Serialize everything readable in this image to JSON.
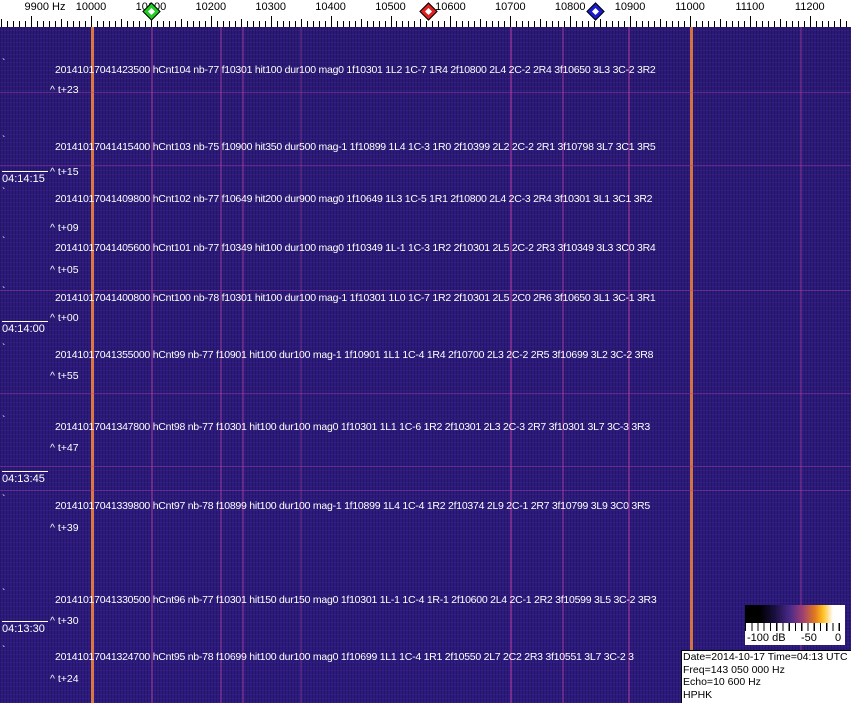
{
  "axis": {
    "unit_label": "9900 Hz",
    "labels": [
      "10000",
      "10100",
      "10200",
      "10300",
      "10400",
      "10500",
      "10600",
      "10700",
      "10800",
      "10900",
      "11000",
      "11100",
      "11200"
    ],
    "range_hz": [
      9850,
      11280
    ],
    "markers": [
      {
        "name": "green",
        "freq_hz": 10100,
        "color": "#22cc22"
      },
      {
        "name": "red",
        "freq_hz": 10563,
        "color": "#dd2222"
      },
      {
        "name": "blue",
        "freq_hz": 10841,
        "color": "#1a1acc"
      }
    ]
  },
  "spectrogram": {
    "background_color": "#2b1b7e",
    "signal_color": "#e8843a",
    "time_labels": [
      "04:14:15",
      "04:14:00",
      "04:13:45",
      "04:13:30"
    ],
    "rows": [
      {
        "text": "20141017041423500 hCnt104 nb-77 f10301 hit100 dur100 mag0 1f10301 1L2 1C-7 1R4 2f10800 2L4 2C-2 2R4 3f10650 3L3 3C-2 3R2",
        "t": "^ t+23"
      },
      {
        "text": "20141017041415400 hCnt103 nb-75 f10900 hit350 dur500 mag-1 1f10899 1L4 1C-3 1R0 2f10399 2L2 2C-2 2R1 3f10798 3L7 3C1 3R5",
        "t": "^ t+15"
      },
      {
        "text": "20141017041409800 hCnt102 nb-77 f10649 hit200 dur900 mag0 1f10649 1L3 1C-5 1R1 2f10800 2L4 2C-3 2R4 3f10301 3L1 3C1 3R2",
        "t": "^ t+09"
      },
      {
        "text": "20141017041405600 hCnt101 nb-77 f10349 hit100 dur100 mag0 1f10349 1L-1 1C-3 1R2 2f10301 2L5 2C-2 2R3 3f10349 3L3 3C0 3R4",
        "t": "^ t+05"
      },
      {
        "text": "20141017041400800 hCnt100 nb-78 f10301 hit100 dur100 mag-1 1f10301 1L0 1C-7 1R2 2f10301 2L5 2C0 2R6 3f10650 3L1 3C-1 3R1",
        "t": "^ t+00"
      },
      {
        "text": "20141017041355000 hCnt99 nb-77 f10901 hit100 dur100 mag-1 1f10901 1L1 1C-4 1R4 2f10700 2L3 2C-2 2R5 3f10699 3L2 3C-2 3R8",
        "t": "^ t+55"
      },
      {
        "text": "20141017041347800 hCnt98 nb-77 f10301 hit100 dur100 mag0 1f10301 1L1 1C-6 1R2 2f10301 2L3 2C-3 2R7 3f10301 3L7 3C-3 3R3",
        "t": "^ t+47"
      },
      {
        "text": "20141017041339800 hCnt97 nb-78 f10899 hit100 dur100 mag-1 1f10899 1L4 1C-4 1R2 2f10374 2L9 2C-1 2R7 3f10799 3L9 3C0 3R5",
        "t": "^ t+39"
      },
      {
        "text": "20141017041330500 hCnt96 nb-77 f10301 hit150 dur150 mag0 1f10301 1L-1 1C-4 1R-1 2f10600 2L4 2C-1 2R2 3f10599 3L5 3C-2 3R3",
        "t": "^ t+30"
      },
      {
        "text": "20141017041324700 hCnt95 nb-78 f10699 hit100 dur100 mag0 1f10699 1L1 1C-4 1R1 2f10550 2L7 2C2 2R3 3f10551 3L7 3C-2 3",
        "t": "^ t+24"
      }
    ]
  },
  "colorbar": {
    "labels": [
      "-100 dB",
      "-50",
      "0"
    ]
  },
  "info": {
    "date_line": "Date=2014-10-17 Time=04:13 UTC",
    "freq_line": "Freq=143 050 000 Hz",
    "echo_line": "Echo=10 600 Hz",
    "station": "HPHK"
  }
}
